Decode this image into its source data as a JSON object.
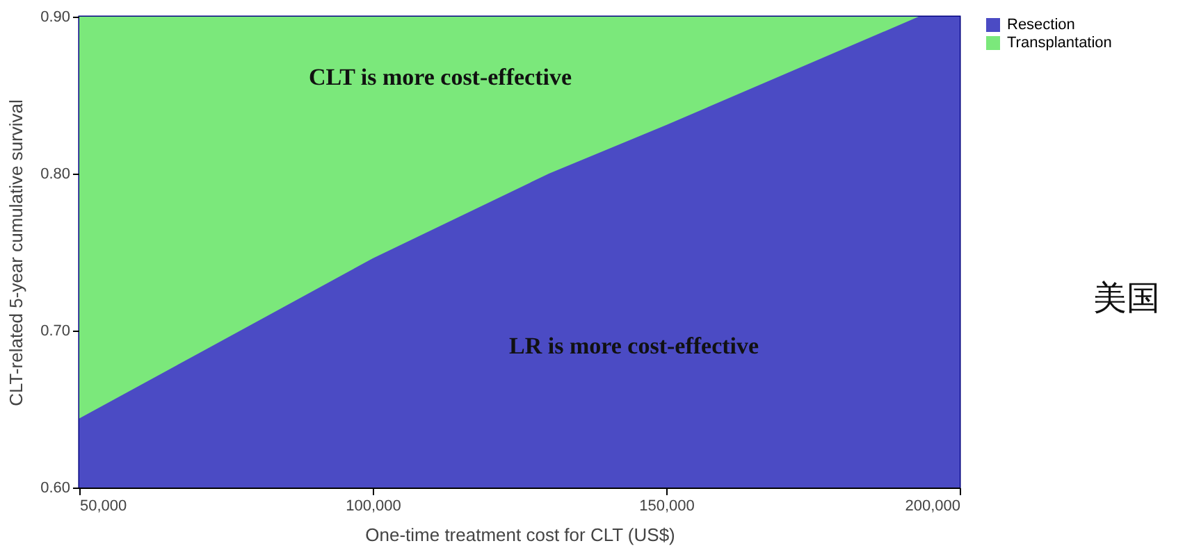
{
  "chart_data": {
    "type": "area",
    "xlabel": "One-time treatment cost for CLT (US$)",
    "ylabel": "CLT-related 5-year cumulative survival",
    "series": [
      {
        "name": "Resection",
        "color": "#4b4bc4",
        "x": [
          50000,
          100000,
          130000,
          150000,
          193000,
          200000
        ],
        "values": [
          0.644,
          0.746,
          0.8,
          0.831,
          0.9,
          0.9
        ]
      },
      {
        "name": "Transplantation",
        "color": "#7be87b",
        "x": [
          50000,
          193000
        ],
        "values": [
          0.9,
          0.9
        ]
      }
    ],
    "xlim": [
      50000,
      200000
    ],
    "xticks": [
      {
        "value": 50000,
        "label": "50,000"
      },
      {
        "value": 100000,
        "label": "100,000"
      },
      {
        "value": 150000,
        "label": "150,000"
      },
      {
        "value": 200000,
        "label": "200,000"
      }
    ],
    "ylim": [
      0.6,
      0.9
    ],
    "yticks": [
      {
        "value": 0.6,
        "label": "0.60"
      },
      {
        "value": 0.7,
        "label": "0.70"
      },
      {
        "value": 0.8,
        "label": "0.80"
      },
      {
        "value": 0.9,
        "label": "0.90"
      }
    ],
    "legend": "top right",
    "grid": false,
    "annotations": [
      "CLT is more cost-effective",
      "LR is more cost-effective",
      "美国"
    ]
  }
}
